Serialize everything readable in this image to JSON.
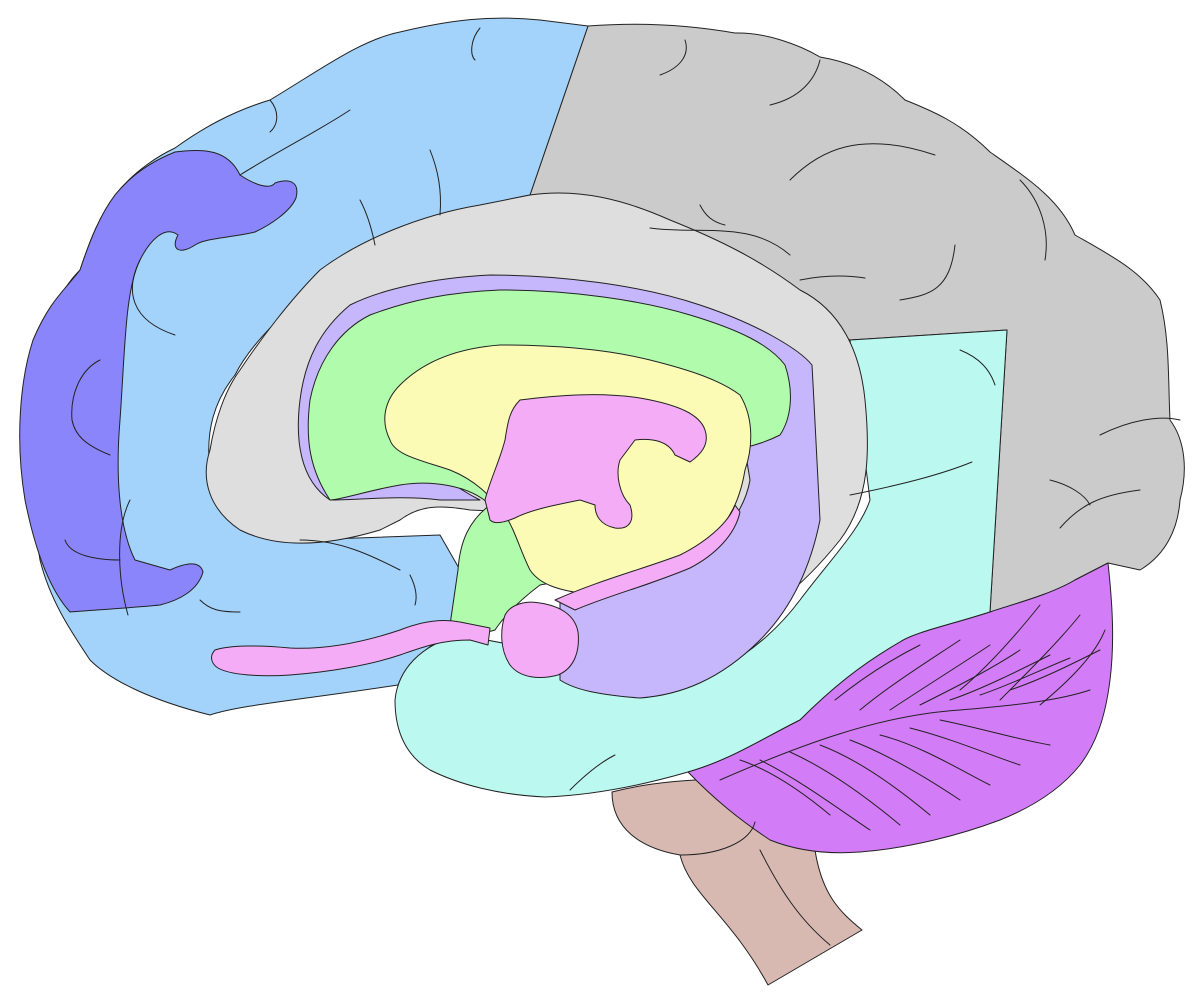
{
  "diagram": {
    "subject": "brain-midsagittal-section",
    "labels": [],
    "colors": {
      "outline": "#222222",
      "prefrontal": "#8b85fb",
      "frontal": "#a3d2fb",
      "parietal_occipital": "#cbcbcb",
      "cingulate": "#dedede",
      "temporal": "#bbf8ef",
      "cerebellum": "#d37cf7",
      "brainstem": "#d8b9b2",
      "fornix_band": "#c6b6fb",
      "corpus_callosum": "#b1fbad",
      "thalamus": "#fcfbb5",
      "ventricle_pink": "#f5acf7"
    }
  }
}
